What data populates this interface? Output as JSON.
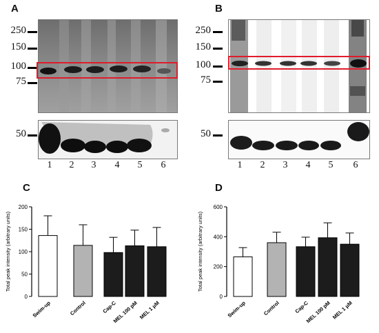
{
  "panels": {
    "A": {
      "letter": "A",
      "mw_labels": [
        "250",
        "150",
        "100",
        "75",
        "50"
      ],
      "lane_labels": [
        "1",
        "2",
        "3",
        "4",
        "5",
        "6"
      ]
    },
    "B": {
      "letter": "B",
      "mw_labels": [
        "250",
        "150",
        "100",
        "75",
        "50"
      ],
      "lane_labels": [
        "1",
        "2",
        "3",
        "4",
        "5",
        "6"
      ]
    },
    "C": {
      "letter": "C"
    },
    "D": {
      "letter": "D"
    }
  },
  "chart_data": [
    {
      "panel": "C",
      "type": "bar",
      "title": "",
      "xlabel": "",
      "ylabel": "Total peak intensity (arbitrary units)",
      "ylim": [
        0,
        200
      ],
      "yticks": [
        0,
        50,
        100,
        150,
        200
      ],
      "categories": [
        "Swim-up",
        "Control",
        "Cap-C",
        "MEL 100 pM",
        "MEL 1 μM"
      ],
      "values": [
        136,
        114,
        98,
        113,
        111
      ],
      "errors": [
        44,
        46,
        34,
        35,
        43
      ],
      "bar_colors": [
        "#ffffff",
        "#b3b3b3",
        "#1c1c1c",
        "#1c1c1c",
        "#1c1c1c"
      ]
    },
    {
      "panel": "D",
      "type": "bar",
      "title": "",
      "xlabel": "",
      "ylabel": "Total peak intensity (arbitrary units)",
      "ylim": [
        0,
        600
      ],
      "yticks": [
        0,
        200,
        400,
        600
      ],
      "categories": [
        "Swim-up",
        "Control",
        "Cap-C",
        "MEL 100 pM",
        "MEL 1 μM"
      ],
      "values": [
        265,
        360,
        333,
        393,
        350
      ],
      "errors": [
        62,
        70,
        64,
        100,
        75
      ],
      "bar_colors": [
        "#ffffff",
        "#b3b3b3",
        "#1c1c1c",
        "#1c1c1c",
        "#1c1c1c"
      ]
    }
  ]
}
